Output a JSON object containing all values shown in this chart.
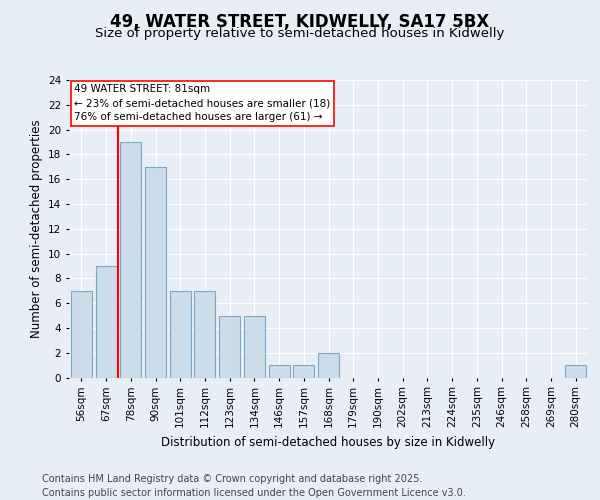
{
  "title_line1": "49, WATER STREET, KIDWELLY, SA17 5BX",
  "title_line2": "Size of property relative to semi-detached houses in Kidwelly",
  "xlabel": "Distribution of semi-detached houses by size in Kidwelly",
  "ylabel": "Number of semi-detached properties",
  "categories": [
    "56sqm",
    "67sqm",
    "78sqm",
    "90sqm",
    "101sqm",
    "112sqm",
    "123sqm",
    "134sqm",
    "146sqm",
    "157sqm",
    "168sqm",
    "179sqm",
    "190sqm",
    "202sqm",
    "213sqm",
    "224sqm",
    "235sqm",
    "246sqm",
    "258sqm",
    "269sqm",
    "280sqm"
  ],
  "values": [
    7,
    9,
    19,
    17,
    7,
    7,
    5,
    5,
    1,
    1,
    2,
    0,
    0,
    0,
    0,
    0,
    0,
    0,
    0,
    0,
    1
  ],
  "bar_color": "#ccdce8",
  "bar_edge_color": "#7aaac8",
  "red_line_index": 2,
  "annotation_text_line1": "49 WATER STREET: 81sqm",
  "annotation_text_line2": "← 23% of semi-detached houses are smaller (18)",
  "annotation_text_line3": "76% of semi-detached houses are larger (61) →",
  "ylim": [
    0,
    24
  ],
  "yticks": [
    0,
    2,
    4,
    6,
    8,
    10,
    12,
    14,
    16,
    18,
    20,
    22,
    24
  ],
  "bg_color": "#e8eef5",
  "plot_bg_color": "#e8eef5",
  "footer_line1": "Contains HM Land Registry data © Crown copyright and database right 2025.",
  "footer_line2": "Contains public sector information licensed under the Open Government Licence v3.0.",
  "title_fontsize": 12,
  "subtitle_fontsize": 9.5,
  "axis_label_fontsize": 8.5,
  "tick_fontsize": 7.5,
  "annotation_fontsize": 7.5,
  "footer_fontsize": 7.0
}
